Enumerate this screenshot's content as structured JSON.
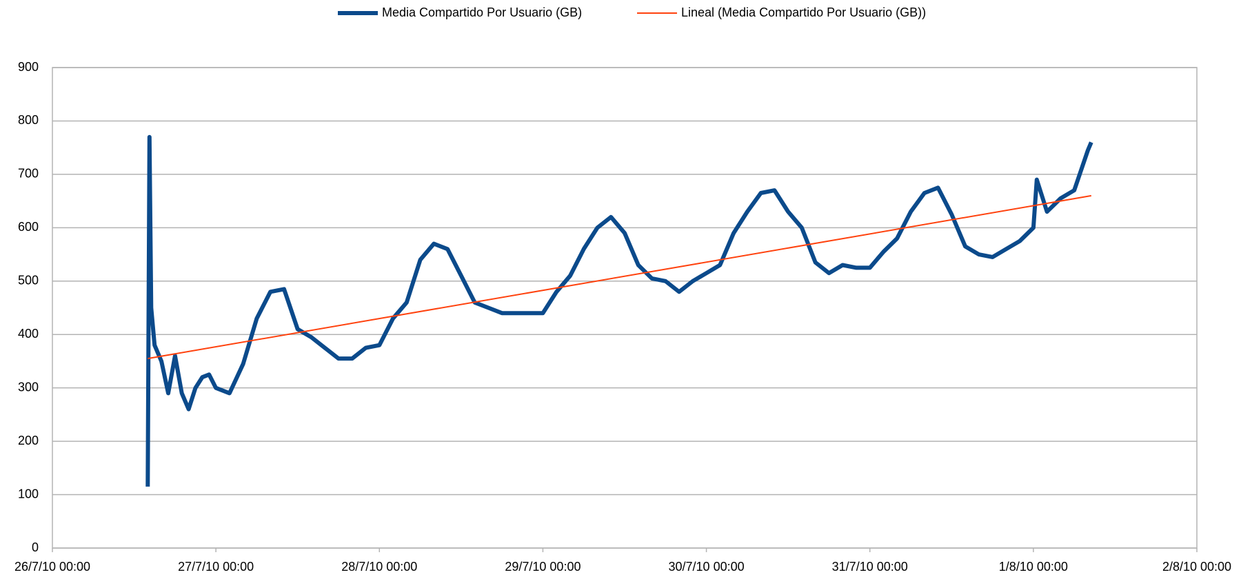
{
  "chart_data": {
    "type": "line",
    "x": [
      "26/7/10 14:00",
      "26/7/10 14:15",
      "26/7/10 14:30",
      "26/7/10 15:00",
      "26/7/10 16:00",
      "26/7/10 17:00",
      "26/7/10 18:00",
      "26/7/10 19:00",
      "26/7/10 20:00",
      "26/7/10 21:00",
      "26/7/10 22:00",
      "26/7/10 23:00",
      "27/7/10 00:00",
      "27/7/10 02:00",
      "27/7/10 04:00",
      "27/7/10 06:00",
      "27/7/10 08:00",
      "27/7/10 10:00",
      "27/7/10 12:00",
      "27/7/10 14:00",
      "27/7/10 16:00",
      "27/7/10 18:00",
      "27/7/10 20:00",
      "27/7/10 22:00",
      "28/7/10 00:00",
      "28/7/10 02:00",
      "28/7/10 04:00",
      "28/7/10 06:00",
      "28/7/10 08:00",
      "28/7/10 10:00",
      "28/7/10 12:00",
      "28/7/10 14:00",
      "28/7/10 16:00",
      "28/7/10 18:00",
      "28/7/10 20:00",
      "28/7/10 22:00",
      "29/7/10 00:00",
      "29/7/10 02:00",
      "29/7/10 04:00",
      "29/7/10 06:00",
      "29/7/10 08:00",
      "29/7/10 10:00",
      "29/7/10 12:00",
      "29/7/10 14:00",
      "29/7/10 16:00",
      "29/7/10 18:00",
      "29/7/10 20:00",
      "29/7/10 22:00",
      "30/7/10 00:00",
      "30/7/10 02:00",
      "30/7/10 04:00",
      "30/7/10 06:00",
      "30/7/10 08:00",
      "30/7/10 10:00",
      "30/7/10 12:00",
      "30/7/10 14:00",
      "30/7/10 16:00",
      "30/7/10 18:00",
      "30/7/10 20:00",
      "30/7/10 22:00",
      "31/7/10 00:00",
      "31/7/10 02:00",
      "31/7/10 04:00",
      "31/7/10 06:00",
      "31/7/10 08:00",
      "31/7/10 10:00",
      "31/7/10 12:00",
      "31/7/10 14:00",
      "31/7/10 16:00",
      "31/7/10 18:00",
      "31/7/10 20:00",
      "31/7/10 22:00",
      "1/8/10 00:00",
      "1/8/10 00:30",
      "1/8/10 02:00",
      "1/8/10 04:00",
      "1/8/10 06:00",
      "1/8/10 08:00",
      "1/8/10 08:30"
    ],
    "series": [
      {
        "name": "Media Compartido Por Usuario (GB)",
        "color": "#0b4a8b",
        "values": [
          115,
          770,
          450,
          380,
          350,
          290,
          360,
          290,
          260,
          300,
          320,
          325,
          300,
          290,
          345,
          430,
          480,
          485,
          410,
          395,
          375,
          355,
          355,
          375,
          380,
          430,
          460,
          540,
          570,
          560,
          510,
          460,
          450,
          440,
          440,
          440,
          440,
          480,
          510,
          560,
          600,
          620,
          590,
          530,
          505,
          500,
          480,
          500,
          515,
          530,
          590,
          630,
          665,
          670,
          630,
          600,
          535,
          515,
          530,
          525,
          525,
          555,
          580,
          630,
          665,
          675,
          625,
          565,
          550,
          545,
          560,
          575,
          600,
          690,
          630,
          655,
          670,
          745,
          760
        ]
      },
      {
        "name": "Lineal (Media Compartido Por Usuario (GB))",
        "color": "#ff420e",
        "x": [
          "26/7/10 14:00",
          "1/8/10 08:30"
        ],
        "values": [
          355,
          660
        ]
      }
    ],
    "xlim": [
      "26/7/10 00:00",
      "2/8/10 00:00"
    ],
    "xticks": [
      "26/7/10 00:00",
      "27/7/10 00:00",
      "28/7/10 00:00",
      "29/7/10 00:00",
      "30/7/10 00:00",
      "31/7/10 00:00",
      "1/8/10 00:00",
      "2/8/10 00:00"
    ],
    "ylim": [
      0,
      900
    ],
    "yticks": [
      0,
      100,
      200,
      300,
      400,
      500,
      600,
      700,
      800,
      900
    ],
    "grid": true,
    "legend": "top"
  }
}
